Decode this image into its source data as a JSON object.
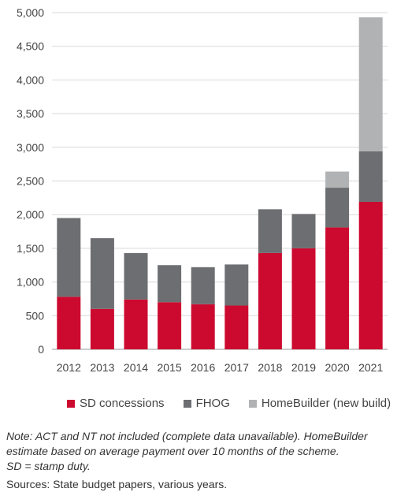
{
  "chart_data": {
    "type": "bar",
    "stacked": true,
    "categories": [
      "2012",
      "2013",
      "2014",
      "2015",
      "2016",
      "2017",
      "2018",
      "2019",
      "2020",
      "2021"
    ],
    "series": [
      {
        "name": "SD concessions",
        "color": "#cc0a2f",
        "values": [
          780,
          600,
          740,
          700,
          670,
          650,
          1430,
          1500,
          1810,
          2190
        ]
      },
      {
        "name": "FHOG",
        "color": "#6d6e71",
        "values": [
          1170,
          1050,
          690,
          550,
          550,
          610,
          650,
          510,
          590,
          750
        ]
      },
      {
        "name": "HomeBuilder (new build)",
        "color": "#b1b2b4",
        "values": [
          0,
          0,
          0,
          0,
          0,
          0,
          0,
          0,
          240,
          1990
        ]
      }
    ],
    "ylim": [
      0,
      5000
    ],
    "yticks": [
      "0",
      "500",
      "1,000",
      "1,500",
      "2,000",
      "2,500",
      "3,000",
      "3,500",
      "4,000",
      "4,500",
      "5,000"
    ],
    "grid": true,
    "legend_position": "bottom",
    "title": "",
    "xlabel": "",
    "ylabel": ""
  },
  "note": {
    "line1": "Note: ACT and NT not included (complete data unavailable). HomeBuilder",
    "line2": "estimate based on average payment over 10 months of the scheme.",
    "line3": "SD = stamp duty."
  },
  "sources": "Sources: State budget papers, various years."
}
